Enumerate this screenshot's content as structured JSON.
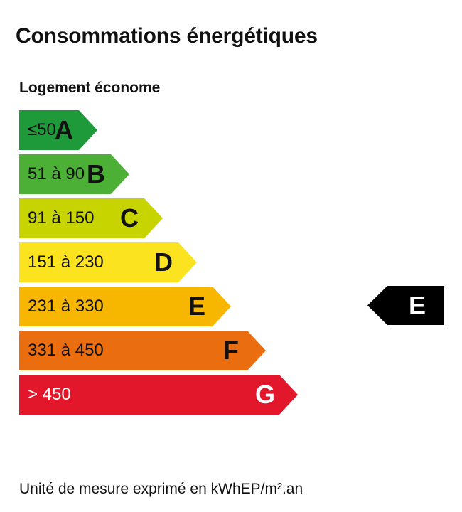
{
  "title": "Consommations énergétiques",
  "subtitle": "Logement économe",
  "footer": "Unité de mesure exprimé en kWhEP/m².an",
  "chart_data": {
    "type": "energy-rating-scale",
    "classes": [
      {
        "letter": "A",
        "range": "≤50",
        "color": "#1f9a3b",
        "text_color": "#111111"
      },
      {
        "letter": "B",
        "range": "51 à 90",
        "color": "#4caf36",
        "text_color": "#111111"
      },
      {
        "letter": "C",
        "range": "91 à 150",
        "color": "#c7d400",
        "text_color": "#111111"
      },
      {
        "letter": "D",
        "range": "151 à 230",
        "color": "#fbe41f",
        "text_color": "#111111"
      },
      {
        "letter": "E",
        "range": "231 à 330",
        "color": "#f7b600",
        "text_color": "#111111"
      },
      {
        "letter": "F",
        "range": "331 à 450",
        "color": "#ea6d10",
        "text_color": "#111111"
      },
      {
        "letter": "G",
        "range": "> 450",
        "color": "#e3172b",
        "text_color": "#ffffff"
      }
    ],
    "selected": "E",
    "marker_color": "#000000"
  }
}
